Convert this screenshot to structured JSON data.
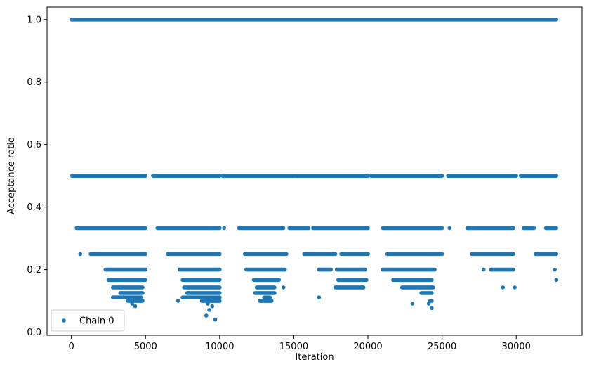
{
  "chart_data": {
    "type": "scatter",
    "xlabel": "Iteration",
    "ylabel": "Acceptance ratio",
    "xlim": [
      -1640,
      34440
    ],
    "ylim": [
      -0.01,
      1.04
    ],
    "xticks": [
      0,
      5000,
      10000,
      15000,
      20000,
      25000,
      30000
    ],
    "yticks": [
      0.0,
      0.2,
      0.4,
      0.6,
      0.8,
      1.0
    ],
    "xtick_labels": [
      "0",
      "5000",
      "10000",
      "15000",
      "20000",
      "25000",
      "30000"
    ],
    "ytick_labels": [
      "0.0",
      "0.2",
      "0.4",
      "0.6",
      "0.8",
      "1.0"
    ],
    "grid": false,
    "legend_position": "lower-left",
    "marker_color": "#1f77b4",
    "series": [
      {
        "name": "Chain 0",
        "bands": [
          {
            "y": 1.0,
            "ranges": [
              [
                0,
                32700
              ]
            ]
          },
          {
            "y": 0.5,
            "ranges": [
              [
                50,
                5000
              ],
              [
                5500,
                10000
              ],
              [
                10200,
                15000
              ],
              [
                15100,
                20000
              ],
              [
                20200,
                25000
              ],
              [
                25400,
                30000
              ],
              [
                30300,
                32700
              ]
            ]
          },
          {
            "y": 0.333,
            "ranges": [
              [
                350,
                5000
              ],
              [
                5800,
                10000
              ],
              [
                11300,
                14300
              ],
              [
                14700,
                16000
              ],
              [
                16300,
                20000
              ],
              [
                21000,
                25000
              ],
              [
                26700,
                29800
              ],
              [
                30500,
                31200
              ],
              [
                32000,
                32700
              ]
            ]
          },
          {
            "y": 0.25,
            "ranges": [
              [
                1300,
                5000
              ],
              [
                6500,
                10000
              ],
              [
                11700,
                14500
              ],
              [
                15700,
                17800
              ],
              [
                18200,
                20000
              ],
              [
                21300,
                25000
              ],
              [
                27000,
                29800
              ],
              [
                31300,
                32700
              ]
            ]
          },
          {
            "y": 0.2,
            "ranges": [
              [
                2300,
                5000
              ],
              [
                7300,
                10000
              ],
              [
                11800,
                14400
              ],
              [
                16700,
                17500
              ],
              [
                17900,
                19800
              ],
              [
                21000,
                24500
              ],
              [
                28300,
                29800
              ]
            ]
          },
          {
            "y": 0.167,
            "ranges": [
              [
                2500,
                5000
              ],
              [
                7500,
                10000
              ],
              [
                12300,
                14000
              ],
              [
                18000,
                19900
              ],
              [
                21700,
                24300
              ]
            ]
          },
          {
            "y": 0.143,
            "ranges": [
              [
                2800,
                4800
              ],
              [
                7600,
                10000
              ],
              [
                12500,
                13700
              ],
              [
                17800,
                19700
              ],
              [
                22300,
                24400
              ]
            ]
          },
          {
            "y": 0.125,
            "ranges": [
              [
                3300,
                4800
              ],
              [
                7800,
                10000
              ],
              [
                12400,
                13700
              ],
              [
                23600,
                24300
              ]
            ]
          },
          {
            "y": 0.111,
            "ranges": [
              [
                2800,
                4700
              ],
              [
                7500,
                10000
              ],
              [
                13000,
                13400
              ],
              [
                16700,
                16700
              ]
            ]
          },
          {
            "y": 0.1,
            "ranges": [
              [
                3800,
                4800
              ],
              [
                8800,
                10000
              ],
              [
                12700,
                13500
              ],
              [
                24200,
                24300
              ]
            ]
          }
        ],
        "outliers": [
          {
            "x": 600,
            "y": 0.25
          },
          {
            "x": 16700,
            "y": 0.111
          },
          {
            "x": 23000,
            "y": 0.091
          },
          {
            "x": 24100,
            "y": 0.091
          },
          {
            "x": 24300,
            "y": 0.077
          },
          {
            "x": 4100,
            "y": 0.091
          },
          {
            "x": 4300,
            "y": 0.083
          },
          {
            "x": 9200,
            "y": 0.091
          },
          {
            "x": 9300,
            "y": 0.071
          },
          {
            "x": 9500,
            "y": 0.083
          },
          {
            "x": 9100,
            "y": 0.053
          },
          {
            "x": 9700,
            "y": 0.04
          },
          {
            "x": 14200,
            "y": 0.2
          },
          {
            "x": 14300,
            "y": 0.143
          },
          {
            "x": 29100,
            "y": 0.143
          },
          {
            "x": 29900,
            "y": 0.143
          },
          {
            "x": 27800,
            "y": 0.2
          },
          {
            "x": 32600,
            "y": 0.2
          },
          {
            "x": 32700,
            "y": 0.167
          },
          {
            "x": 10300,
            "y": 0.333
          },
          {
            "x": 25500,
            "y": 0.333
          },
          {
            "x": 7200,
            "y": 0.1
          }
        ]
      }
    ]
  }
}
